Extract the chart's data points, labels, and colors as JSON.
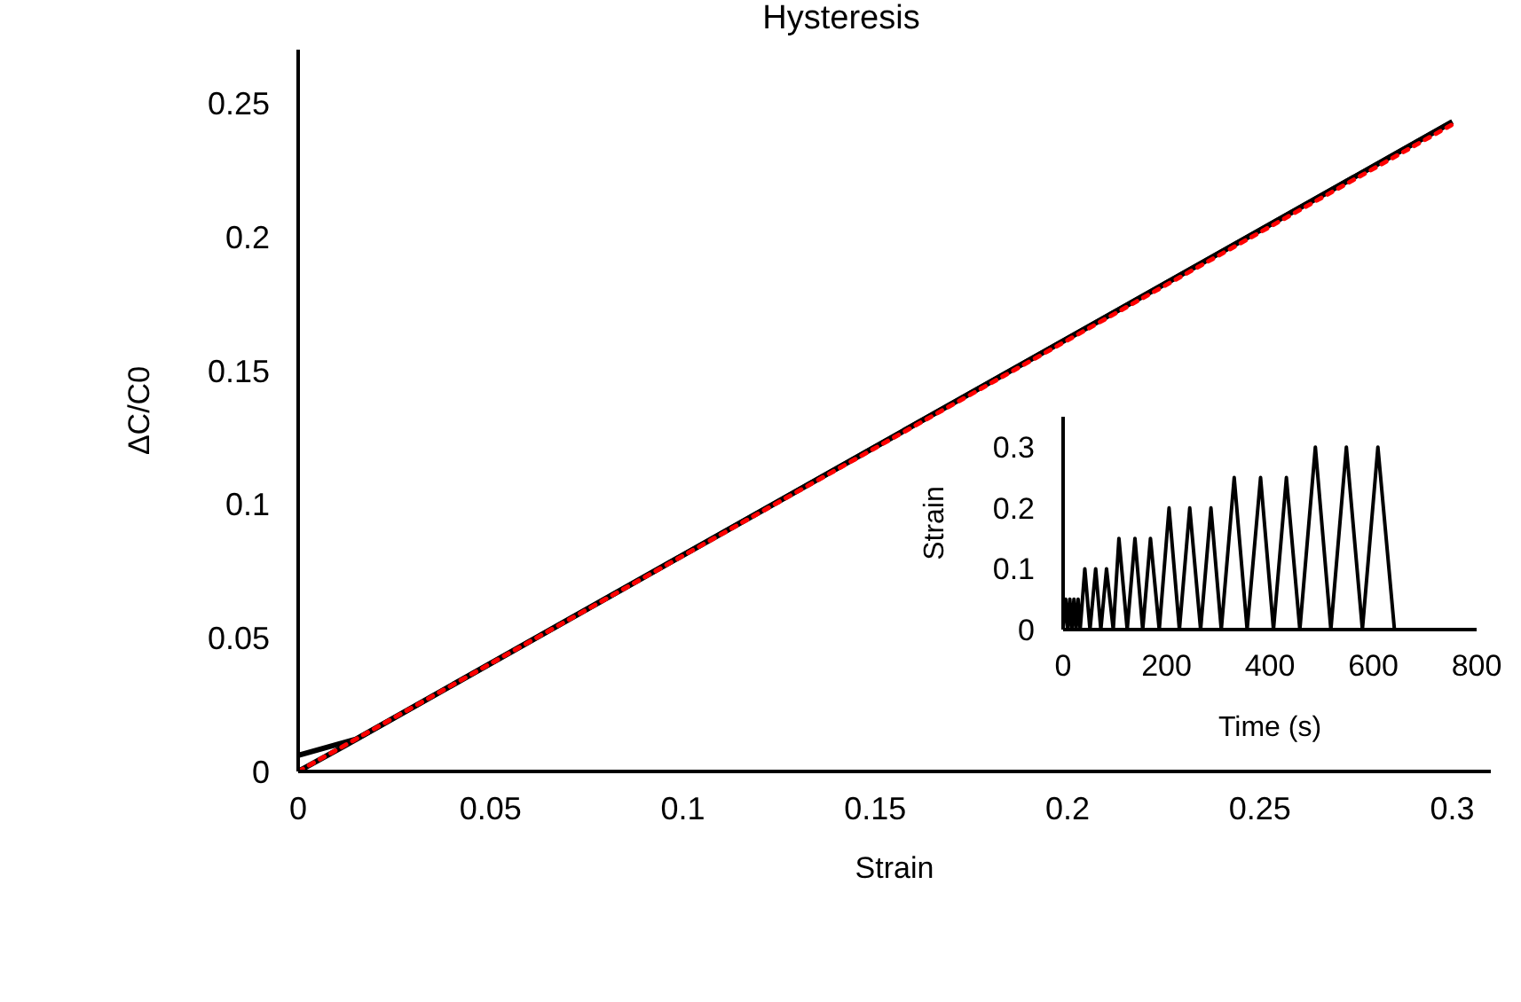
{
  "chart_data": [
    {
      "type": "line",
      "title": "Hysteresis",
      "xlabel": "Strain",
      "ylabel": "ΔC/C0",
      "xlim": [
        0,
        0.31
      ],
      "xticks": [
        0,
        0.05,
        0.1,
        0.15,
        0.2,
        0.25,
        0.3
      ],
      "ylim": [
        0,
        0.27
      ],
      "yticks": [
        0,
        0.05,
        0.1,
        0.15,
        0.2,
        0.25
      ],
      "grid": false,
      "legend": false,
      "marker": "none",
      "series": [
        {
          "color": "#000000",
          "line_style": "solid",
          "x": [
            0,
            0.012,
            0.3
          ],
          "values": [
            0,
            0.0095,
            0.243
          ]
        },
        {
          "color": "#000000",
          "line_style": "solid",
          "x": [
            0,
            0.015,
            0.3
          ],
          "values": [
            0.006,
            0.0121,
            0.243
          ]
        },
        {
          "color": "#ff0000",
          "line_style": "dotted",
          "x": [
            0,
            0.3
          ],
          "values": [
            0,
            0.242
          ]
        }
      ]
    },
    {
      "type": "line",
      "xlabel": "Time (s)",
      "ylabel": "Strain",
      "xlim": [
        0,
        800
      ],
      "xticks": [
        0,
        200,
        400,
        600,
        800
      ],
      "ylim": [
        0,
        0.35
      ],
      "yticks": [
        0,
        0.1,
        0.2,
        0.3
      ],
      "grid": false,
      "legend": false,
      "marker": "none",
      "series": [
        {
          "color": "#000000",
          "line_style": "solid",
          "x": [
            0,
            5,
            9,
            13,
            17,
            21,
            25,
            29,
            33,
            42,
            52,
            63,
            73,
            84,
            97,
            108,
            124,
            139,
            154,
            169,
            186,
            205,
            225,
            245,
            266,
            286,
            306,
            331,
            356,
            382,
            407,
            432,
            458,
            488,
            518,
            548,
            579,
            609,
            641
          ],
          "values": [
            0,
            0.05,
            0,
            0.05,
            0,
            0.05,
            0,
            0.05,
            0,
            0.1,
            0,
            0.1,
            0,
            0.1,
            0,
            0.15,
            0,
            0.15,
            0,
            0.15,
            0,
            0.2,
            0,
            0.2,
            0,
            0.2,
            0,
            0.25,
            0,
            0.25,
            0,
            0.25,
            0,
            0.3,
            0,
            0.3,
            0,
            0.3,
            0
          ]
        }
      ]
    }
  ]
}
